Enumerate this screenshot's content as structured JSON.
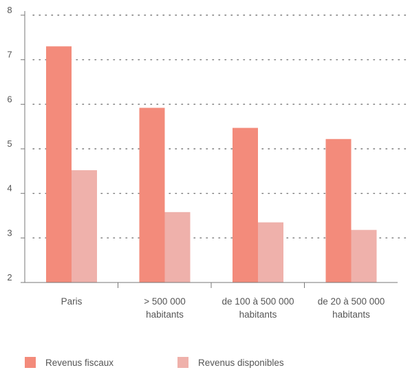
{
  "chart_data": {
    "type": "bar",
    "title": "",
    "xlabel": "",
    "ylabel": "",
    "categories": [
      [
        "Paris"
      ],
      [
        "> 500 000",
        "habitants"
      ],
      [
        "de 100 à 500 000",
        "habitants"
      ],
      [
        "de 20 à 500 000",
        "habitants"
      ]
    ],
    "series": [
      {
        "name": "Revenus fiscaux",
        "color": "#F38B7B",
        "values": [
          7.3,
          5.92,
          5.47,
          5.22
        ]
      },
      {
        "name": "Revenus disponibles",
        "color": "#EFB1AB",
        "values": [
          4.52,
          3.58,
          3.35,
          3.18
        ]
      }
    ],
    "ylim": [
      2,
      8
    ],
    "yticks": [
      2,
      3,
      4,
      5,
      6,
      7,
      8
    ],
    "grid": "horizontal-dotted",
    "legend": "bottom-left"
  }
}
